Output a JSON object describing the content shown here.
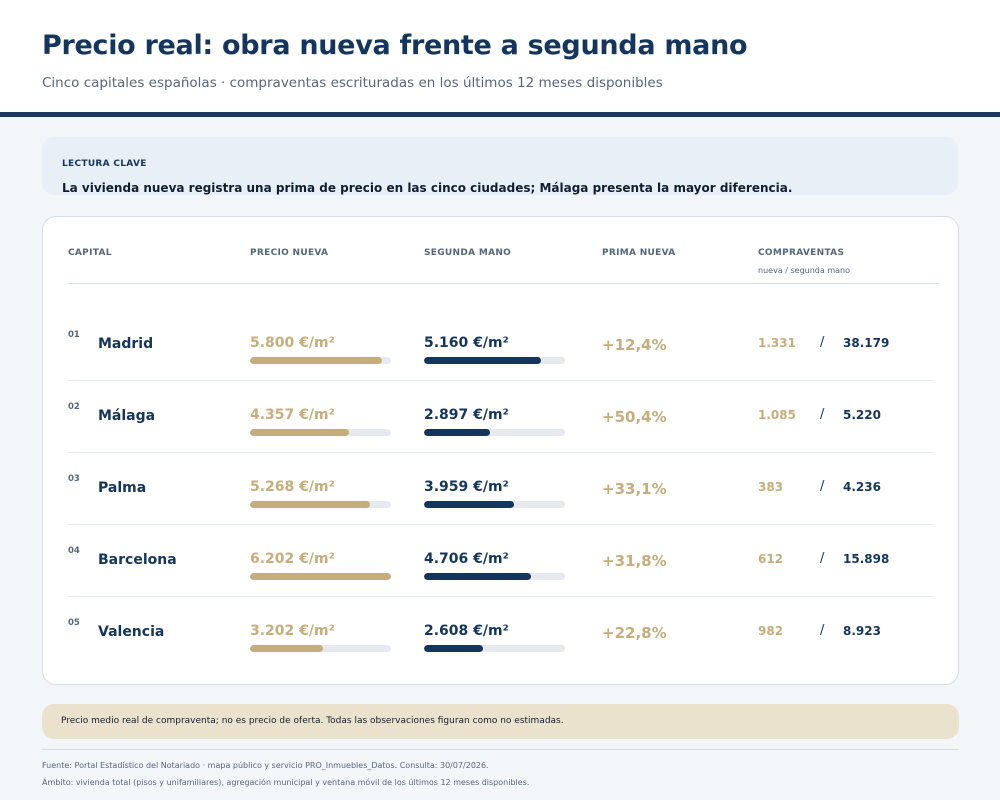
{
  "header": {
    "title": "Precio real: obra nueva frente a segunda mano",
    "subtitle": "Cinco capitales españolas · compraventas escrituradas en los últimos 12 meses disponibles"
  },
  "key_reading": {
    "label": "LECTURA CLAVE",
    "text": "La vivienda nueva registra una prima de precio en las cinco ciudades; Málaga presenta la mayor diferencia."
  },
  "table": {
    "headers": {
      "capital": "CAPITAL",
      "new_price": "PRECIO NUEVA",
      "second_hand": "SEGUNDA MANO",
      "premium": "PRIMA NUEVA",
      "sales": "COMPRAVENTAS",
      "sales_sub": "nueva / segunda mano"
    },
    "slash": "/"
  },
  "chart_data": {
    "type": "table",
    "columns": [
      "CAPITAL",
      "PRECIO NUEVA",
      "SEGUNDA MANO",
      "PRIMA NUEVA",
      "COMPRAVENTAS"
    ],
    "bar_max": 6202,
    "rows": [
      {
        "index": "01",
        "city": "Madrid",
        "new_price": 5800,
        "new_price_label": "5.800 €/m²",
        "second_price": 5160,
        "second_price_label": "5.160 €/m²",
        "premium": "+12,4%",
        "sales_new": "1.331",
        "sales_second": "38.179"
      },
      {
        "index": "02",
        "city": "Málaga",
        "new_price": 4357,
        "new_price_label": "4.357 €/m²",
        "second_price": 2897,
        "second_price_label": "2.897 €/m²",
        "premium": "+50,4%",
        "sales_new": "1.085",
        "sales_second": "5.220"
      },
      {
        "index": "03",
        "city": "Palma",
        "new_price": 5268,
        "new_price_label": "5.268 €/m²",
        "second_price": 3959,
        "second_price_label": "3.959 €/m²",
        "premium": "+33,1%",
        "sales_new": "383",
        "sales_second": "4.236"
      },
      {
        "index": "04",
        "city": "Barcelona",
        "new_price": 6202,
        "new_price_label": "6.202 €/m²",
        "second_price": 4706,
        "second_price_label": "4.706 €/m²",
        "premium": "+31,8%",
        "sales_new": "612",
        "sales_second": "15.898"
      },
      {
        "index": "05",
        "city": "Valencia",
        "new_price": 3202,
        "new_price_label": "3.202 €/m²",
        "second_price": 2608,
        "second_price_label": "2.608 €/m²",
        "premium": "+22,8%",
        "sales_new": "982",
        "sales_second": "8.923"
      }
    ]
  },
  "note": {
    "text": "Precio medio real de compraventa; no es precio de oferta. Todas las observaciones figuran como no estimadas."
  },
  "footer": {
    "source": "Fuente: Portal Estadístico del Notariado · mapa público y servicio PRO_Inmuebles_Datos. Consulta: 30/07/2026.",
    "scope": "Ámbito: vivienda total (pisos y unifamiliares), agregación municipal y ventana móvil de los últimos 12 meses disponibles."
  },
  "colors": {
    "navy": "#14365e",
    "gold": "#c6ad7a",
    "track": "#e6eaef"
  }
}
